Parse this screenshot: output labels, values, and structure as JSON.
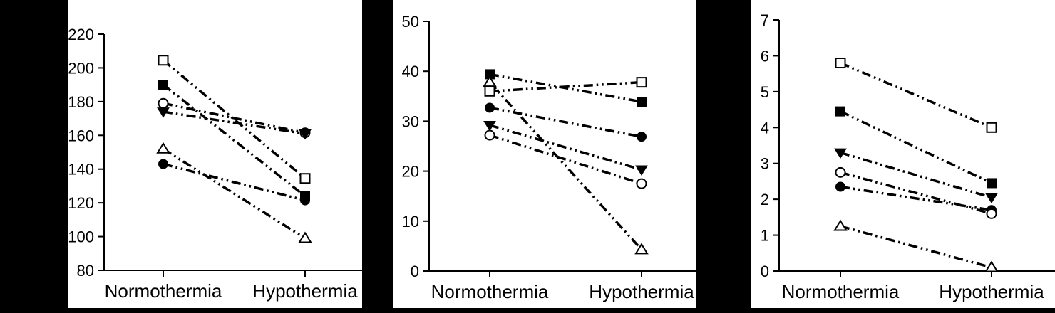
{
  "colors": {
    "background": "#000000",
    "panel": "#ffffff",
    "ink": "#000000"
  },
  "chart_data": [
    {
      "type": "line",
      "subtype": "paired-slope",
      "categories": [
        "Normothermia",
        "Hypothermia"
      ],
      "ylim": [
        80,
        220
      ],
      "yticks": [
        80,
        100,
        120,
        140,
        160,
        180,
        200,
        220
      ],
      "grid": false,
      "legend": "none",
      "line_style": "dash-dot-dot",
      "series": [
        {
          "marker": "open-square",
          "values": [
            204.5,
            134.5
          ]
        },
        {
          "marker": "filled-square",
          "values": [
            190,
            124
          ]
        },
        {
          "marker": "filled-circle",
          "values": [
            143,
            121.5
          ]
        },
        {
          "marker": "open-circle",
          "values": [
            179,
            161.5
          ]
        },
        {
          "marker": "filled-triangle-down",
          "values": [
            174,
            161
          ]
        },
        {
          "marker": "open-triangle-up",
          "values": [
            152,
            99
          ]
        }
      ]
    },
    {
      "type": "line",
      "subtype": "paired-slope",
      "categories": [
        "Normothermia",
        "Hypothermia"
      ],
      "ylim": [
        0,
        50
      ],
      "yticks": [
        0,
        10,
        20,
        30,
        40,
        50
      ],
      "grid": false,
      "legend": "none",
      "line_style": "dash-dot-dot",
      "series": [
        {
          "marker": "open-square",
          "values": [
            36,
            37.8
          ]
        },
        {
          "marker": "filled-square",
          "values": [
            39.4,
            33.9
          ]
        },
        {
          "marker": "filled-circle",
          "values": [
            32.7,
            26.9
          ]
        },
        {
          "marker": "open-circle",
          "values": [
            27.2,
            17.5
          ]
        },
        {
          "marker": "filled-triangle-down",
          "values": [
            29.2,
            20.3
          ]
        },
        {
          "marker": "open-triangle-up",
          "values": [
            37.8,
            4.3
          ]
        }
      ]
    },
    {
      "type": "line",
      "subtype": "paired-slope",
      "categories": [
        "Normothermia",
        "Hypothermia"
      ],
      "ylim": [
        0,
        7
      ],
      "yticks": [
        0,
        1,
        2,
        3,
        4,
        5,
        6,
        7
      ],
      "grid": false,
      "legend": "none",
      "line_style": "dash-dot-dot",
      "series": [
        {
          "marker": "open-square",
          "values": [
            5.8,
            4.0
          ]
        },
        {
          "marker": "filled-square",
          "values": [
            4.45,
            2.45
          ]
        },
        {
          "marker": "filled-circle",
          "values": [
            2.35,
            1.7
          ]
        },
        {
          "marker": "open-circle",
          "values": [
            2.75,
            1.6
          ]
        },
        {
          "marker": "filled-triangle-down",
          "values": [
            3.3,
            2.05
          ]
        },
        {
          "marker": "open-triangle-up",
          "values": [
            1.25,
            0.1
          ]
        }
      ]
    }
  ]
}
